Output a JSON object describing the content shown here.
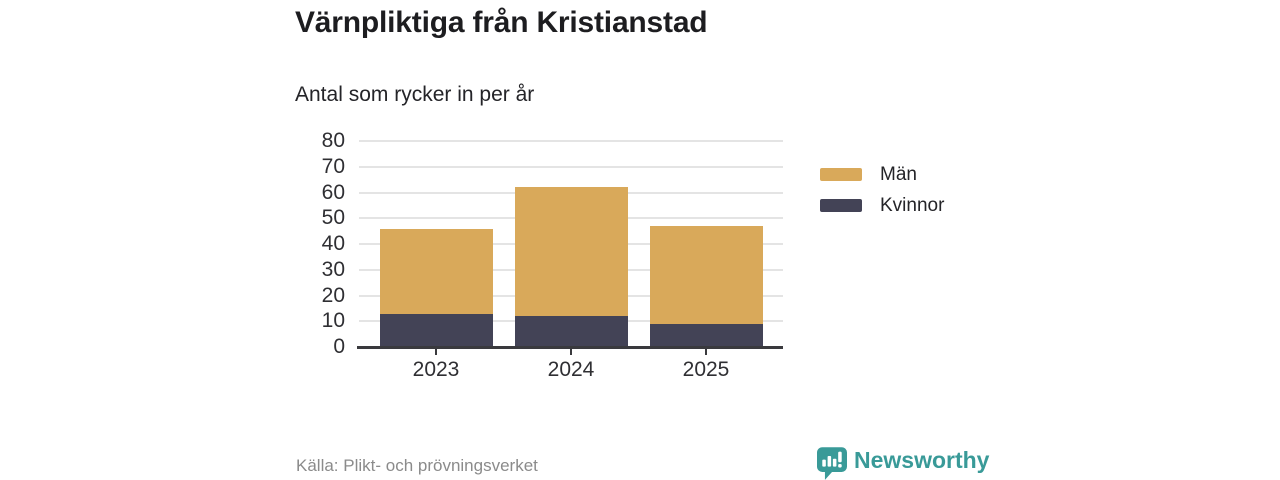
{
  "title": "Värnpliktiga från Kristianstad",
  "subtitle": "Antal som rycker in per år",
  "source": "Källa: Plikt- och prövningsverket",
  "brand": {
    "name": "Newsworthy",
    "color": "#399a98",
    "icon": "newsworthy-speech-bubble-bar-chart-icon"
  },
  "colors": {
    "men": "#d9a95a",
    "kvinnor": "#434356",
    "gridline": "#e4e4e4",
    "axis": "#3a3a3e",
    "title_text": "#1d1d20",
    "tick_text": "#2f2f33",
    "muted_text": "#8b8b8b"
  },
  "chart_data": {
    "type": "bar",
    "stacked": true,
    "title": "Värnpliktiga från Kristianstad",
    "subtitle": "Antal som rycker in per år",
    "categories": [
      "2023",
      "2024",
      "2025"
    ],
    "series": [
      {
        "name": "Kvinnor",
        "color": "#434356",
        "values": [
          13,
          12,
          9
        ]
      },
      {
        "name": "Män",
        "color": "#d9a95a",
        "values": [
          33,
          50,
          38
        ]
      }
    ],
    "totals": [
      46,
      62,
      47
    ],
    "ylim": [
      0,
      80
    ],
    "yticks": [
      0,
      10,
      20,
      30,
      40,
      50,
      60,
      70,
      80
    ],
    "grid": true,
    "legend_position": "right",
    "legend": [
      {
        "label": "Män",
        "color": "#d9a95a"
      },
      {
        "label": "Kvinnor",
        "color": "#434356"
      }
    ]
  }
}
